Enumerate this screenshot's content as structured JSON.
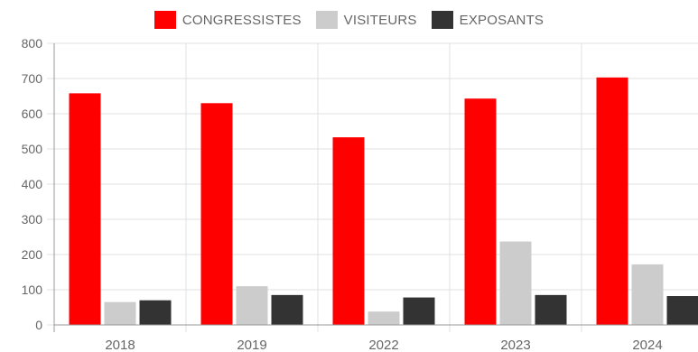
{
  "chart_data": {
    "type": "bar",
    "categories": [
      "2018",
      "2019",
      "2022",
      "2023",
      "2024"
    ],
    "series": [
      {
        "name": "CONGRESSISTES",
        "color": "#ff0000",
        "values": [
          658,
          630,
          533,
          643,
          703
        ]
      },
      {
        "name": "VISITEURS",
        "color": "#cccccc",
        "values": [
          65,
          110,
          38,
          237,
          172
        ]
      },
      {
        "name": "EXPOSANTS",
        "color": "#333333",
        "values": [
          70,
          85,
          78,
          85,
          82
        ]
      }
    ],
    "ylim": [
      0,
      800
    ],
    "yticks": [
      "0",
      "100",
      "200",
      "300",
      "400",
      "500",
      "600",
      "700",
      "800"
    ],
    "grid": true,
    "legend_position": "top",
    "title": "",
    "xlabel": "",
    "ylabel": ""
  }
}
